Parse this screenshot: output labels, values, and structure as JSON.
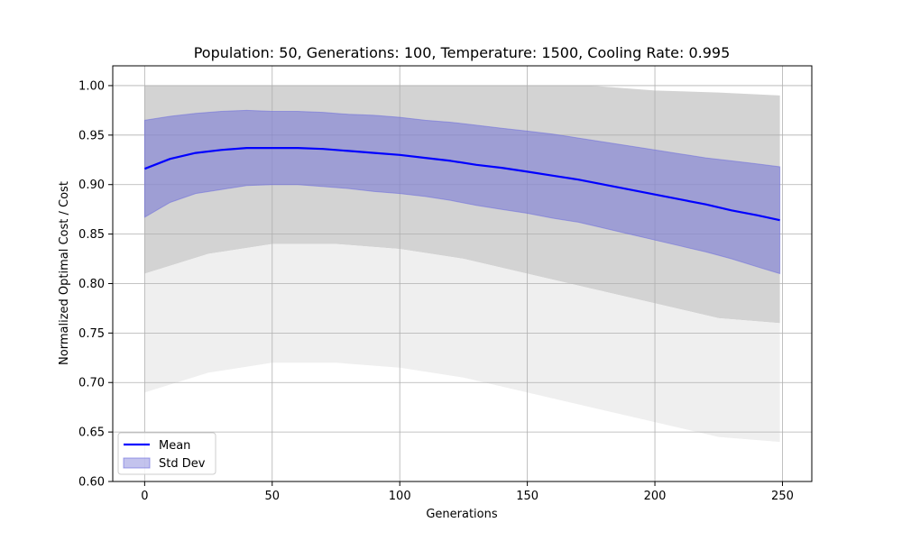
{
  "chart_data": {
    "type": "line",
    "title": "Population: 50, Generations: 100, Temperature: 1500, Cooling Rate: 0.995",
    "xlabel": "Generations",
    "ylabel": "Normalized Optimal Cost / Cost",
    "xlim": [
      -12.5,
      261.5
    ],
    "ylim": [
      0.6,
      1.02
    ],
    "xticks": [
      0,
      50,
      100,
      150,
      200,
      250
    ],
    "yticks": [
      0.6,
      0.65,
      0.7,
      0.75,
      0.8,
      0.85,
      0.9,
      0.95,
      1.0
    ],
    "grid": true,
    "legend": {
      "position": "lower-left",
      "entries": [
        "Mean",
        "Std Dev"
      ]
    },
    "colors": {
      "mean": "#0000ff",
      "std_fill": "#7b7bd6",
      "runs": "#d3d3d3"
    },
    "runs_envelope": {
      "x": [
        0,
        25,
        50,
        75,
        100,
        125,
        150,
        175,
        200,
        225,
        249
      ],
      "upper": [
        1.0,
        1.0,
        1.0,
        1.0,
        1.0,
        1.0,
        1.0,
        1.0,
        0.995,
        0.993,
        0.99
      ],
      "lower": [
        0.81,
        0.83,
        0.84,
        0.84,
        0.835,
        0.825,
        0.81,
        0.795,
        0.78,
        0.765,
        0.76
      ]
    },
    "series": [
      {
        "name": "Mean",
        "x": [
          0,
          10,
          20,
          30,
          40,
          50,
          60,
          70,
          80,
          90,
          100,
          110,
          120,
          130,
          140,
          150,
          160,
          170,
          180,
          190,
          200,
          210,
          220,
          230,
          240,
          249
        ],
        "y": [
          0.916,
          0.926,
          0.932,
          0.935,
          0.937,
          0.937,
          0.937,
          0.936,
          0.934,
          0.932,
          0.93,
          0.927,
          0.924,
          0.92,
          0.917,
          0.913,
          0.909,
          0.905,
          0.9,
          0.895,
          0.89,
          0.885,
          0.88,
          0.874,
          0.869,
          0.864
        ]
      },
      {
        "name": "Std Dev",
        "x": [
          0,
          10,
          20,
          30,
          40,
          50,
          60,
          70,
          80,
          90,
          100,
          110,
          120,
          130,
          140,
          150,
          160,
          170,
          180,
          190,
          200,
          210,
          220,
          230,
          240,
          249
        ],
        "upper": [
          0.965,
          0.969,
          0.972,
          0.974,
          0.975,
          0.974,
          0.974,
          0.973,
          0.971,
          0.97,
          0.968,
          0.965,
          0.963,
          0.96,
          0.957,
          0.954,
          0.951,
          0.947,
          0.943,
          0.939,
          0.935,
          0.931,
          0.927,
          0.924,
          0.921,
          0.918
        ],
        "lower": [
          0.867,
          0.882,
          0.891,
          0.895,
          0.899,
          0.9,
          0.9,
          0.898,
          0.896,
          0.893,
          0.891,
          0.888,
          0.884,
          0.879,
          0.875,
          0.871,
          0.866,
          0.862,
          0.856,
          0.85,
          0.844,
          0.838,
          0.832,
          0.825,
          0.817,
          0.81
        ]
      }
    ]
  }
}
